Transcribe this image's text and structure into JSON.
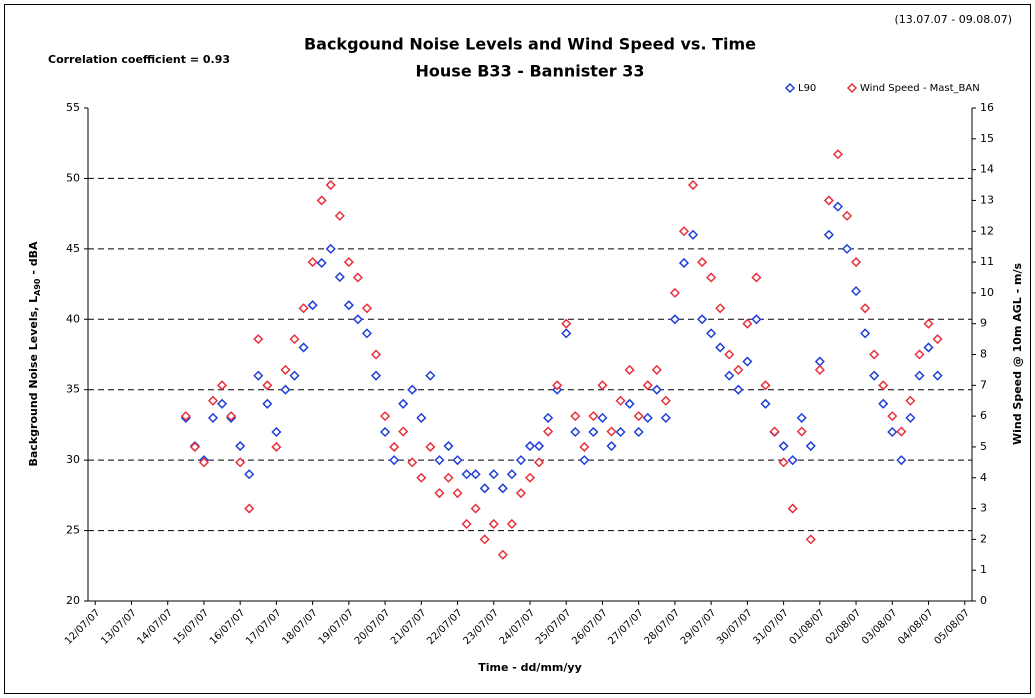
{
  "chart_data": {
    "type": "scatter",
    "title": "Backgound Noise Levels and Wind Speed vs. Time",
    "subtitle": "House B33 - Bannister 33",
    "annotations": [
      "Correlation coefficient = 0.93",
      "(13.07.07 - 09.08.07)"
    ],
    "xlabel": "Time - dd/mm/yy",
    "ylabel": [
      "Background Noise Levels, L",
      "A90",
      " - dBA"
    ],
    "y2label": "Wind Speed @ 10m AGL - m/s",
    "marker": "diamond",
    "grid": true,
    "legend": "top-right",
    "x": [
      14.5,
      14.75,
      15,
      15.25,
      15.5,
      15.75,
      16,
      16.25,
      16.5,
      16.75,
      17,
      17.25,
      17.5,
      17.75,
      18,
      18.25,
      18.5,
      18.75,
      19,
      19.25,
      19.5,
      19.75,
      20,
      20.25,
      20.5,
      20.75,
      21,
      21.25,
      21.5,
      21.75,
      22,
      22.25,
      22.5,
      22.75,
      23,
      23.25,
      23.5,
      23.75,
      24,
      24.25,
      24.5,
      24.75,
      25,
      25.25,
      25.5,
      25.75,
      26,
      26.25,
      26.5,
      26.75,
      27,
      27.25,
      27.5,
      27.75,
      28,
      28.25,
      28.5,
      28.75,
      29,
      29.25,
      29.5,
      29.75,
      30,
      30.25,
      30.5,
      30.75,
      31,
      31.25,
      31.5,
      31.75,
      32,
      32.25,
      32.5,
      32.75,
      33,
      33.25,
      33.5,
      33.75,
      34,
      34.25,
      34.5,
      34.75,
      35,
      35.25
    ],
    "series": [
      {
        "name": "L90",
        "color": "#1f3fd8",
        "axis": "y",
        "values": [
          33,
          31,
          30,
          33,
          34,
          33,
          31,
          29,
          36,
          34,
          32,
          35,
          36,
          38,
          41,
          44,
          45,
          43,
          41,
          40,
          39,
          36,
          32,
          30,
          34,
          35,
          33,
          36,
          30,
          31,
          30,
          29,
          29,
          28,
          29,
          28,
          29,
          30,
          31,
          31,
          33,
          35,
          39,
          32,
          30,
          32,
          33,
          31,
          32,
          34,
          32,
          33,
          35,
          33,
          40,
          44,
          46,
          40,
          39,
          38,
          36,
          35,
          37,
          40,
          34,
          32,
          31,
          30,
          33,
          31,
          37,
          46,
          48,
          45,
          42,
          39,
          36,
          34,
          32,
          30,
          33,
          36,
          38,
          36
        ]
      },
      {
        "name": "Wind Speed - Mast_BAN",
        "color": "#e8303a",
        "axis": "y2",
        "values": [
          6,
          5,
          4.5,
          6.5,
          7,
          6,
          4.5,
          3,
          8.5,
          7,
          5,
          7.5,
          8.5,
          9.5,
          11,
          13,
          13.5,
          12.5,
          11,
          10.5,
          9.5,
          8,
          6,
          5,
          5.5,
          4.5,
          4,
          5,
          3.5,
          4,
          3.5,
          2.5,
          3,
          2,
          2.5,
          1.5,
          2.5,
          3.5,
          4,
          4.5,
          5.5,
          7,
          9,
          6,
          5,
          6,
          7,
          5.5,
          6.5,
          7.5,
          6,
          7,
          7.5,
          6.5,
          10,
          12,
          13.5,
          11,
          10.5,
          9.5,
          8,
          7.5,
          9,
          10.5,
          7,
          5.5,
          4.5,
          3,
          5.5,
          2,
          7.5,
          13,
          14.5,
          12.5,
          11,
          9.5,
          8,
          7,
          6,
          5.5,
          6.5,
          8,
          9,
          8.5
        ]
      }
    ],
    "xlim": [
      11.8,
      36.2
    ],
    "xticks": [
      {
        "value": 12,
        "label": "12/07/07"
      },
      {
        "value": 13,
        "label": "13/07/07"
      },
      {
        "value": 14,
        "label": "14/07/07"
      },
      {
        "value": 15,
        "label": "15/07/07"
      },
      {
        "value": 16,
        "label": "16/07/07"
      },
      {
        "value": 17,
        "label": "17/07/07"
      },
      {
        "value": 18,
        "label": "18/07/07"
      },
      {
        "value": 19,
        "label": "19/07/07"
      },
      {
        "value": 20,
        "label": "20/07/07"
      },
      {
        "value": 21,
        "label": "21/07/07"
      },
      {
        "value": 22,
        "label": "22/07/07"
      },
      {
        "value": 23,
        "label": "23/07/07"
      },
      {
        "value": 24,
        "label": "24/07/07"
      },
      {
        "value": 25,
        "label": "25/07/07"
      },
      {
        "value": 26,
        "label": "26/07/07"
      },
      {
        "value": 27,
        "label": "27/07/07"
      },
      {
        "value": 28,
        "label": "28/07/07"
      },
      {
        "value": 29,
        "label": "29/07/07"
      },
      {
        "value": 30,
        "label": "30/07/07"
      },
      {
        "value": 31,
        "label": "31/07/07"
      },
      {
        "value": 32,
        "label": "01/08/07"
      },
      {
        "value": 33,
        "label": "02/08/07"
      },
      {
        "value": 34,
        "label": "03/08/07"
      },
      {
        "value": 35,
        "label": "04/08/07"
      },
      {
        "value": 36,
        "label": "05/08/07"
      }
    ],
    "ylim": [
      20,
      55
    ],
    "yticks": [
      20,
      25,
      30,
      35,
      40,
      45,
      50,
      55
    ],
    "y2lim": [
      0,
      16
    ],
    "y2ticks": [
      0,
      1,
      2,
      3,
      4,
      5,
      6,
      7,
      8,
      9,
      10,
      11,
      12,
      13,
      14,
      15,
      16
    ]
  }
}
